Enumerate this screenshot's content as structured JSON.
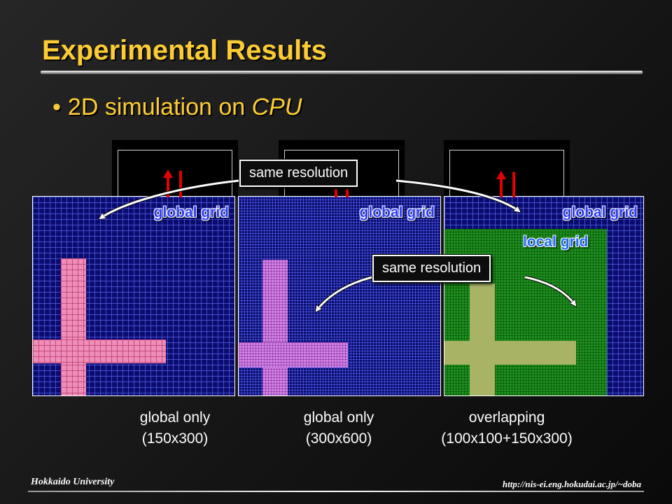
{
  "slide": {
    "title": "Experimental Results",
    "bullet": {
      "marker": "•",
      "text": "2D simulation on ",
      "emphasis": "CPU"
    }
  },
  "panels": [
    {
      "label": "global grid",
      "caption_line1": "global only",
      "caption_line2": "(150x300)"
    },
    {
      "label": "global grid",
      "caption_line1": "global only",
      "caption_line2": "(300x600)"
    },
    {
      "label": "global grid",
      "local_label": "local grid",
      "caption_line1": "overlapping",
      "caption_line2": "(100x100+150x300)"
    }
  ],
  "callouts": {
    "top": "same resolution",
    "middle": "same resolution"
  },
  "footer": {
    "left": "Hokkaido University",
    "right": "http://nis-ei.eng.hokudai.ac.jp/~doba"
  },
  "colors": {
    "title": "#ffcc33",
    "grid_background": "#0b0b6e",
    "obstacle_coarse": "#f08cb8",
    "obstacle_fine": "#d384e6",
    "local_grid": "#1f8f1f",
    "obstacle_local": "#a9b365",
    "velocity_arrow": "#e00000"
  },
  "icons": [
    "bullet-dot",
    "curved-arrow-icon",
    "velocity-arrow-icon"
  ]
}
